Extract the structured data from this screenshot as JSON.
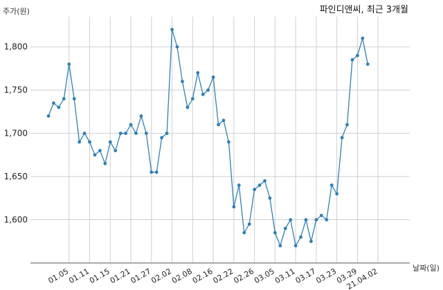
{
  "chart_data": {
    "type": "line",
    "title": "파인디앤씨, 최근 3개월",
    "ylabel": "주가(원)",
    "xlabel": "날짜(일)",
    "ylim": [
      1550,
      1835
    ],
    "yticks": [
      1600,
      1650,
      1700,
      1750,
      1800
    ],
    "ytick_labels": [
      "1,600",
      "1,650",
      "1,700",
      "1,750",
      "1,800"
    ],
    "xtick_labels": [
      "01.05",
      "01.11",
      "01.15",
      "01.21",
      "01.27",
      "02.02",
      "02.08",
      "02.16",
      "02.22",
      "02.26",
      "03.05",
      "03.11",
      "03.17",
      "03.23",
      "03.29",
      "21.04.02"
    ],
    "xtick_index": [
      4,
      8,
      12,
      16,
      20,
      24,
      28,
      32,
      36,
      40,
      44,
      48,
      52,
      56,
      60,
      64
    ],
    "grid": true,
    "series": [
      {
        "values": [
          1720,
          1735,
          1730,
          1740,
          1780,
          1740,
          1690,
          1700,
          1690,
          1675,
          1680,
          1665,
          1690,
          1680,
          1700,
          1700,
          1710,
          1700,
          1720,
          1700,
          1655,
          1655,
          1695,
          1700,
          1820,
          1800,
          1760,
          1730,
          1740,
          1770,
          1745,
          1750,
          1765,
          1710,
          1715,
          1690,
          1615,
          1640,
          1585,
          1595,
          1635,
          1640,
          1645,
          1625,
          1585,
          1570,
          1590,
          1600,
          1570,
          1580,
          1600,
          1575,
          1600,
          1605,
          1600,
          1640,
          1630,
          1695,
          1710,
          1785,
          1790,
          1810,
          1780
        ],
        "color": "#2e7fb8"
      }
    ]
  }
}
